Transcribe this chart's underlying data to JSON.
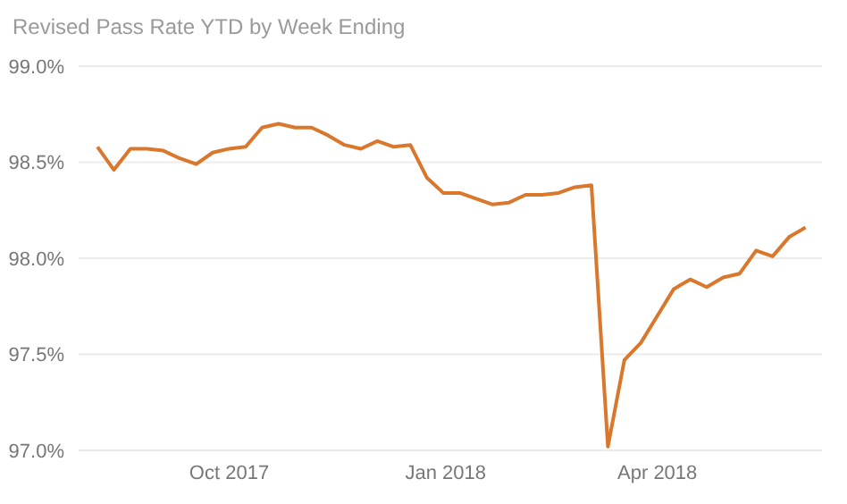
{
  "chart_data": {
    "type": "line",
    "title": "Revised Pass Rate YTD by Week Ending",
    "x": [
      "2017-08-06",
      "2017-08-13",
      "2017-08-20",
      "2017-08-27",
      "2017-09-03",
      "2017-09-10",
      "2017-09-17",
      "2017-09-24",
      "2017-10-01",
      "2017-10-08",
      "2017-10-15",
      "2017-10-22",
      "2017-10-29",
      "2017-11-05",
      "2017-11-12",
      "2017-11-19",
      "2017-11-26",
      "2017-12-03",
      "2017-12-10",
      "2017-12-17",
      "2017-12-24",
      "2017-12-31",
      "2018-01-07",
      "2018-01-14",
      "2018-01-21",
      "2018-01-28",
      "2018-02-04",
      "2018-02-11",
      "2018-02-18",
      "2018-02-25",
      "2018-03-04",
      "2018-03-11",
      "2018-03-18",
      "2018-03-25",
      "2018-04-01",
      "2018-04-08",
      "2018-04-15",
      "2018-04-22",
      "2018-04-29",
      "2018-05-06",
      "2018-05-13",
      "2018-05-20",
      "2018-05-27",
      "2018-06-03"
    ],
    "series": [
      {
        "color": "#d9782d",
        "values": [
          98.58,
          98.46,
          98.57,
          98.57,
          98.56,
          98.52,
          98.49,
          98.55,
          98.57,
          98.58,
          98.68,
          98.7,
          98.68,
          98.68,
          98.64,
          98.59,
          98.57,
          98.61,
          98.58,
          98.59,
          98.42,
          98.34,
          98.34,
          98.31,
          98.28,
          98.29,
          98.33,
          98.33,
          98.34,
          98.37,
          98.38,
          97.02,
          97.47,
          97.56,
          97.7,
          97.84,
          97.89,
          97.85,
          97.9,
          97.92,
          98.04,
          98.01,
          98.11,
          98.16
        ]
      }
    ],
    "xlim": [
      "2017-07-29",
      "2018-06-10"
    ],
    "xticks": [
      {
        "value": "2017-10-01",
        "label": "Oct 2017"
      },
      {
        "value": "2018-01-01",
        "label": "Jan 2018"
      },
      {
        "value": "2018-04-01",
        "label": "Apr 2018"
      }
    ],
    "ylim": [
      97,
      99
    ],
    "yticks": [
      {
        "value": 97,
        "label": "97.0%"
      },
      {
        "value": 97.5,
        "label": "97.5%"
      },
      {
        "value": 98,
        "label": "98.0%"
      },
      {
        "value": 98.5,
        "label": "98.5%"
      },
      {
        "value": 99,
        "label": "99.0%"
      }
    ],
    "grid": "y",
    "marker": "none",
    "line_style": "solid",
    "legend": false
  }
}
